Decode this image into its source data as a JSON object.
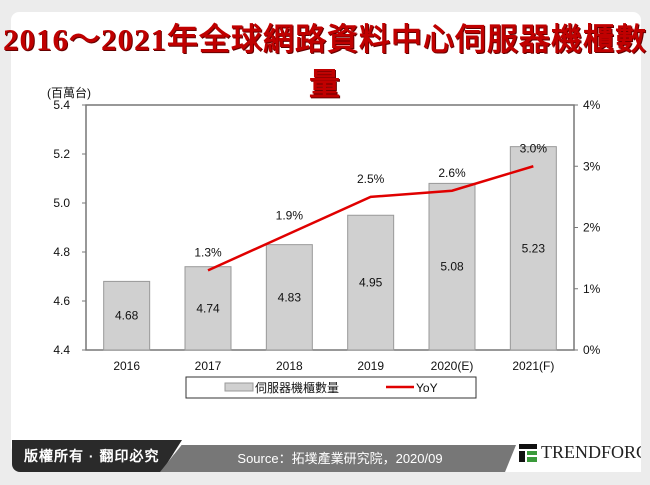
{
  "title": "2016～2021年全球網路資料中心伺服器機櫃數量",
  "footer": {
    "copyright": "版權所有 · 翻印必究",
    "source": "Source：拓墣產業研究院，2020/09",
    "brand": "TrendForce"
  },
  "colors": {
    "title": "#c00000",
    "bar": "#d0d0d0",
    "line": "#e00000"
  },
  "chart_data": {
    "type": "bar+line",
    "categories": [
      "2016",
      "2017",
      "2018",
      "2019",
      "2020(E)",
      "2021(F)"
    ],
    "y_unit_label": "(百萬台)",
    "ylim": [
      4.4,
      5.4
    ],
    "yticks": [
      "4.4",
      "4.6",
      "4.8",
      "5.0",
      "5.2",
      "5.4"
    ],
    "y2lim": [
      0,
      4
    ],
    "y2ticks": [
      "0%",
      "1%",
      "2%",
      "3%",
      "4%"
    ],
    "grid": false,
    "legend_position": "bottom",
    "series": [
      {
        "name": "伺服器機櫃數量",
        "type": "bar",
        "values": [
          4.68,
          4.74,
          4.83,
          4.95,
          5.08,
          5.23
        ],
        "labels": [
          "4.68",
          "4.74",
          "4.83",
          "4.95",
          "5.08",
          "5.23"
        ]
      },
      {
        "name": "YoY",
        "type": "line",
        "axis": "right",
        "values": [
          null,
          1.3,
          1.9,
          2.5,
          2.6,
          3.0
        ],
        "labels": [
          "",
          "1.3%",
          "1.9%",
          "2.5%",
          "2.6%",
          "3.0%"
        ]
      }
    ]
  }
}
